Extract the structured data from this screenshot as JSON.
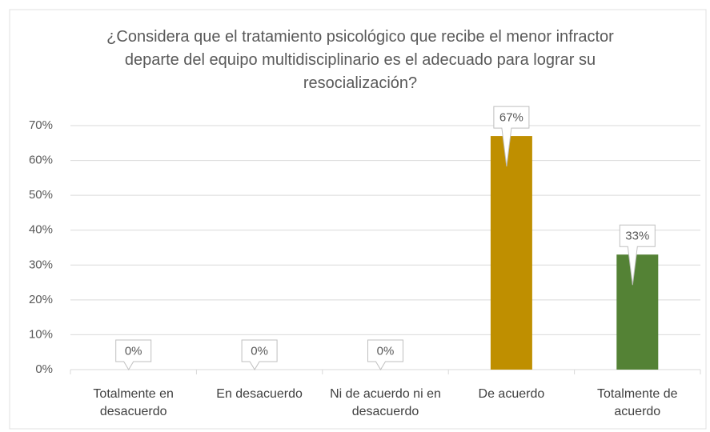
{
  "chart_data": {
    "type": "bar",
    "title": "¿Considera que el tratamiento psicológico que recibe el menor infractor departe del equipo multidisciplinario es el adecuado para lograr su resocialización?",
    "categories": [
      "Totalmente en desacuerdo",
      "En desacuerdo",
      "Ni de acuerdo ni en desacuerdo",
      "De acuerdo",
      "Totalmente de acuerdo"
    ],
    "values": [
      0,
      0,
      0,
      67,
      33
    ],
    "value_labels": [
      "0%",
      "0%",
      "0%",
      "67%",
      "33%"
    ],
    "colors": [
      "#4472c4",
      "#ed7d31",
      "#a5a5a5",
      "#bf8f00",
      "#548235"
    ],
    "ylim": [
      0,
      70
    ],
    "yticks": [
      {
        "value": 0,
        "label": "0%"
      },
      {
        "value": 10,
        "label": "10%"
      },
      {
        "value": 20,
        "label": "20%"
      },
      {
        "value": 30,
        "label": "30%"
      },
      {
        "value": 40,
        "label": "40%"
      },
      {
        "value": 50,
        "label": "50%"
      },
      {
        "value": 60,
        "label": "60%"
      },
      {
        "value": 70,
        "label": "70%"
      }
    ],
    "grid": true
  }
}
